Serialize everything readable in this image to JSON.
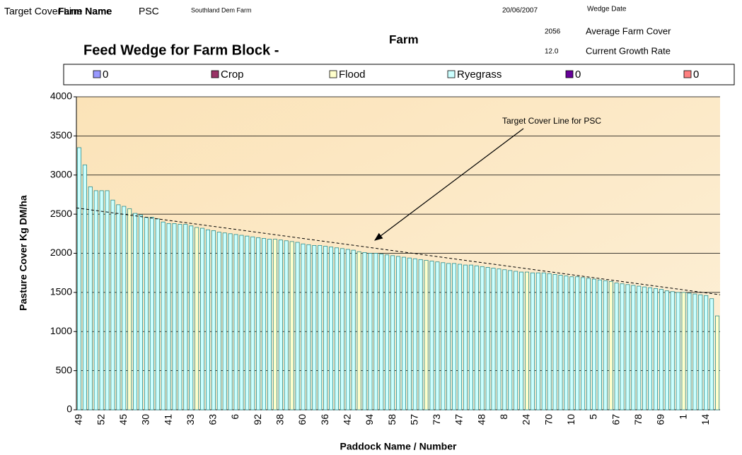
{
  "header": {
    "line_name_label": "Target Cover Line Name",
    "farm_name_label": "Farm Name",
    "line_name": "PSC",
    "farm_name": "Southland Dem Farm",
    "wedge_date": "20/06/2007",
    "wedge_date_label": "Wedge Date",
    "average_cover": "2056",
    "average_cover_label": "Average Farm Cover",
    "growth_rate": "12.0",
    "growth_rate_label": "Current Growth Rate",
    "farm_heading": "Farm"
  },
  "chart_data": {
    "type": "bar",
    "title": "Feed Wedge for Farm Block -",
    "x_label": "Paddock Name / Number",
    "y_label": "Pasture Cover Kg DM/ha",
    "ylim": [
      0,
      4000
    ],
    "yticks": [
      0,
      500,
      1000,
      1500,
      2000,
      2500,
      3000,
      3500,
      4000
    ],
    "grid": true,
    "legend": "top",
    "annotation": "Target Cover Line for PSC",
    "target_line": [
      2580,
      1470
    ],
    "categories": [
      "49",
      null,
      null,
      null,
      "52",
      null,
      null,
      null,
      "45",
      null,
      null,
      null,
      "30",
      null,
      null,
      null,
      "41",
      null,
      null,
      null,
      "33",
      null,
      null,
      null,
      "63",
      null,
      null,
      null,
      "6",
      null,
      null,
      null,
      "92",
      null,
      null,
      null,
      "38",
      null,
      null,
      null,
      "60",
      null,
      null,
      null,
      "36",
      null,
      null,
      null,
      "42",
      null,
      null,
      null,
      "94",
      null,
      null,
      null,
      "58",
      null,
      null,
      null,
      "57",
      null,
      null,
      null,
      "73",
      null,
      null,
      null,
      "47",
      null,
      null,
      null,
      "48",
      null,
      null,
      null,
      "8",
      null,
      null,
      null,
      "24",
      null,
      null,
      null,
      "70",
      null,
      null,
      null,
      "10",
      null,
      null,
      null,
      "5",
      null,
      null,
      null,
      "67",
      null,
      null,
      null,
      "78",
      null,
      null,
      null,
      "69",
      null,
      null,
      null,
      "1",
      null,
      null,
      null,
      "14",
      null,
      null
    ],
    "series": [
      {
        "name": "0",
        "color": "#9999ff"
      },
      {
        "name": "Crop",
        "color": "#993366"
      },
      {
        "name": "Flood",
        "color": "#ffffcc",
        "values": [
          null,
          null,
          null,
          null,
          null,
          null,
          null,
          null,
          null,
          2570,
          null,
          null,
          null,
          null,
          null,
          null,
          null,
          null,
          null,
          null,
          null,
          2330,
          null,
          null,
          null,
          null,
          null,
          null,
          null,
          null,
          null,
          null,
          null,
          null,
          null,
          2180,
          null,
          null,
          2150,
          null,
          null,
          null,
          null,
          null,
          null,
          null,
          null,
          null,
          null,
          null,
          2020,
          null,
          null,
          null,
          null,
          null,
          null,
          null,
          null,
          null,
          null,
          null,
          1910,
          null,
          null,
          null,
          null,
          null,
          null,
          null,
          null,
          null,
          null,
          null,
          null,
          null,
          null,
          null,
          null,
          null,
          1760,
          null,
          null,
          null,
          null,
          null,
          null,
          null,
          null,
          null,
          null,
          null,
          null,
          null,
          null,
          1640,
          null,
          null,
          null,
          null,
          null,
          null,
          null,
          null,
          null,
          null,
          null,
          null,
          1500,
          null,
          null,
          null,
          null,
          null,
          1200
        ]
      },
      {
        "name": "Ryegrass",
        "color": "#ccffff",
        "values": [
          3350,
          3130,
          2850,
          2800,
          2800,
          2800,
          2680,
          2620,
          2600,
          null,
          2510,
          2490,
          2460,
          2460,
          2440,
          2400,
          2380,
          2380,
          2370,
          2370,
          2350,
          null,
          2320,
          2300,
          2290,
          2270,
          2260,
          2250,
          2240,
          2230,
          2220,
          2210,
          2200,
          2190,
          2180,
          null,
          2170,
          2160,
          null,
          2140,
          2120,
          2110,
          2100,
          2100,
          2090,
          2080,
          2070,
          2060,
          2050,
          2040,
          null,
          2010,
          2000,
          2000,
          1990,
          1980,
          1970,
          1960,
          1950,
          1940,
          1930,
          1920,
          null,
          1900,
          1890,
          1880,
          1870,
          1870,
          1860,
          1850,
          1850,
          1840,
          1830,
          1820,
          1810,
          1800,
          1790,
          1780,
          1770,
          1760,
          null,
          1750,
          1750,
          1750,
          1740,
          1730,
          1720,
          1710,
          1700,
          1700,
          1690,
          1680,
          1670,
          1660,
          1650,
          null,
          1620,
          1610,
          1600,
          1590,
          1580,
          1570,
          1560,
          1550,
          1540,
          1520,
          1510,
          1500,
          null,
          1490,
          1480,
          1470,
          1460,
          1420,
          null
        ]
      },
      {
        "name": "0",
        "color": "#660099"
      },
      {
        "name": "0",
        "color": "#ff8080"
      }
    ]
  }
}
